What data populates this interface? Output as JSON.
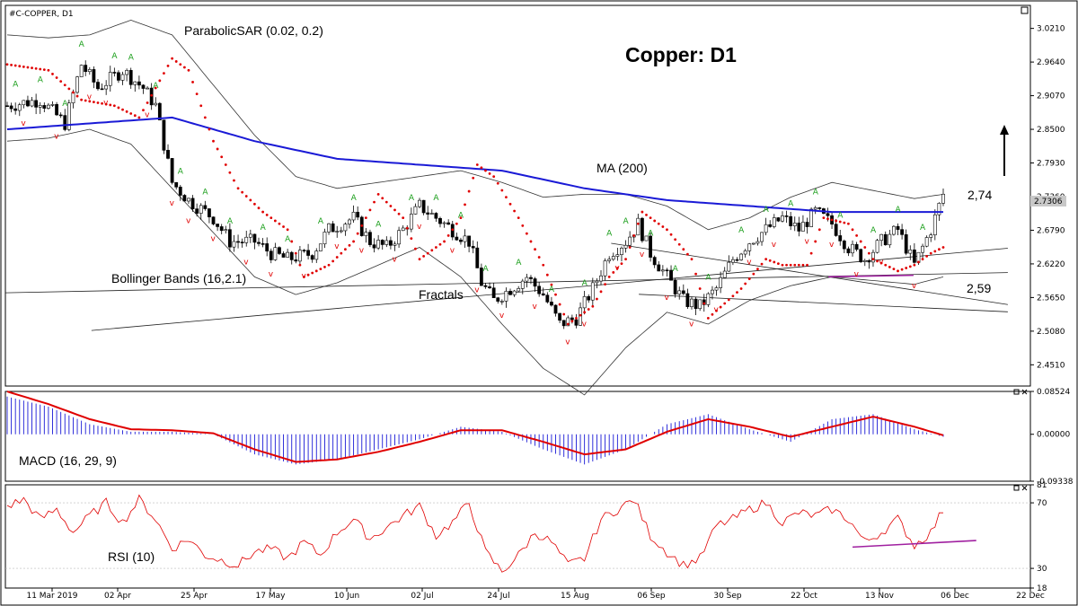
{
  "symbol_label": "#C-COPPER, D1",
  "chart_data": [
    {
      "type": "candlestick",
      "title": "Copper: D1",
      "y_ticks": [
        "3.0210",
        "2.9640",
        "2.9070",
        "2.8500",
        "2.7930",
        "2.7360",
        "2.6790",
        "2.6220",
        "2.5650",
        "2.5080",
        "2.4510"
      ],
      "ylim": [
        2.415,
        3.06
      ],
      "current_price": "2.7306",
      "x_ticks": [
        "11 Mar 2019",
        "02 Apr",
        "25 Apr",
        "17 May",
        "10 Jun",
        "02 Jul",
        "24 Jul",
        "15 Aug",
        "06 Sep",
        "30 Sep",
        "22 Oct",
        "13 Nov",
        "06 Dec",
        "22 Dec"
      ],
      "annotations": {
        "sar": "ParabolicSAR (0.02, 0.2)",
        "ma": "MA (200)",
        "bb": "Bollinger Bands (16,2.1)",
        "fractals": "Fractals",
        "level_high": "2,74",
        "level_low": "2,59"
      },
      "series_anchors": {
        "close": [
          [
            0,
            2.89
          ],
          [
            8,
            2.9
          ],
          [
            14,
            2.86
          ],
          [
            18,
            2.96
          ],
          [
            22,
            2.92
          ],
          [
            28,
            2.95
          ],
          [
            33,
            2.92
          ],
          [
            36,
            2.89
          ],
          [
            40,
            2.76
          ],
          [
            44,
            2.73
          ],
          [
            50,
            2.7
          ],
          [
            54,
            2.66
          ],
          [
            60,
            2.66
          ],
          [
            64,
            2.64
          ],
          [
            68,
            2.63
          ],
          [
            74,
            2.64
          ],
          [
            78,
            2.68
          ],
          [
            84,
            2.7
          ],
          [
            88,
            2.66
          ],
          [
            92,
            2.65
          ],
          [
            96,
            2.68
          ],
          [
            100,
            2.72
          ],
          [
            104,
            2.7
          ],
          [
            108,
            2.68
          ],
          [
            112,
            2.66
          ],
          [
            115,
            2.59
          ],
          [
            118,
            2.56
          ],
          [
            122,
            2.58
          ],
          [
            126,
            2.6
          ],
          [
            130,
            2.57
          ],
          [
            134,
            2.52
          ],
          [
            138,
            2.53
          ],
          [
            142,
            2.58
          ],
          [
            146,
            2.64
          ],
          [
            150,
            2.66
          ],
          [
            153,
            2.69
          ],
          [
            156,
            2.64
          ],
          [
            160,
            2.6
          ],
          [
            164,
            2.56
          ],
          [
            168,
            2.55
          ],
          [
            172,
            2.58
          ],
          [
            176,
            2.63
          ],
          [
            180,
            2.66
          ],
          [
            184,
            2.68
          ],
          [
            188,
            2.7
          ],
          [
            192,
            2.68
          ],
          [
            196,
            2.71
          ],
          [
            200,
            2.69
          ],
          [
            204,
            2.65
          ],
          [
            208,
            2.63
          ],
          [
            212,
            2.66
          ],
          [
            216,
            2.68
          ],
          [
            220,
            2.62
          ],
          [
            224,
            2.68
          ],
          [
            227,
            2.74
          ]
        ],
        "ma200": [
          [
            0,
            2.85
          ],
          [
            20,
            2.86
          ],
          [
            40,
            2.87
          ],
          [
            60,
            2.83
          ],
          [
            80,
            2.8
          ],
          [
            100,
            2.79
          ],
          [
            120,
            2.78
          ],
          [
            140,
            2.75
          ],
          [
            160,
            2.73
          ],
          [
            180,
            2.72
          ],
          [
            200,
            2.71
          ],
          [
            214,
            2.71
          ],
          [
            227,
            2.71
          ]
        ],
        "bb_mid": [
          [
            0,
            2.92
          ],
          [
            10,
            2.92
          ],
          [
            20,
            2.93
          ],
          [
            30,
            2.93
          ],
          [
            40,
            2.88
          ],
          [
            50,
            2.8
          ],
          [
            60,
            2.72
          ],
          [
            70,
            2.67
          ],
          [
            80,
            2.67
          ],
          [
            90,
            2.69
          ],
          [
            100,
            2.71
          ],
          [
            110,
            2.69
          ],
          [
            120,
            2.64
          ],
          [
            130,
            2.59
          ],
          [
            140,
            2.57
          ],
          [
            150,
            2.61
          ],
          [
            160,
            2.63
          ],
          [
            170,
            2.6
          ],
          [
            180,
            2.63
          ],
          [
            190,
            2.66
          ],
          [
            200,
            2.68
          ],
          [
            210,
            2.67
          ],
          [
            220,
            2.66
          ],
          [
            227,
            2.67
          ]
        ],
        "bb_width": [
          [
            0,
            0.09
          ],
          [
            20,
            0.08
          ],
          [
            40,
            0.13
          ],
          [
            60,
            0.12
          ],
          [
            80,
            0.08
          ],
          [
            100,
            0.06
          ],
          [
            120,
            0.12
          ],
          [
            140,
            0.17
          ],
          [
            160,
            0.09
          ],
          [
            180,
            0.07
          ],
          [
            200,
            0.08
          ],
          [
            227,
            0.07
          ]
        ],
        "sar": [
          [
            0,
            2.96
          ],
          [
            10,
            2.95
          ],
          [
            18,
            2.9
          ],
          [
            26,
            2.89
          ],
          [
            32,
            2.87
          ],
          [
            40,
            2.97
          ],
          [
            44,
            2.95
          ],
          [
            50,
            2.83
          ],
          [
            56,
            2.75
          ],
          [
            62,
            2.71
          ],
          [
            68,
            2.68
          ],
          [
            72,
            2.6
          ],
          [
            78,
            2.62
          ],
          [
            84,
            2.66
          ],
          [
            90,
            2.74
          ],
          [
            96,
            2.7
          ],
          [
            100,
            2.63
          ],
          [
            106,
            2.66
          ],
          [
            110,
            2.7
          ],
          [
            114,
            2.79
          ],
          [
            118,
            2.77
          ],
          [
            124,
            2.7
          ],
          [
            130,
            2.62
          ],
          [
            136,
            2.52
          ],
          [
            142,
            2.55
          ],
          [
            146,
            2.6
          ],
          [
            150,
            2.63
          ],
          [
            154,
            2.71
          ],
          [
            160,
            2.68
          ],
          [
            166,
            2.63
          ],
          [
            170,
            2.53
          ],
          [
            178,
            2.58
          ],
          [
            184,
            2.63
          ],
          [
            188,
            2.62
          ],
          [
            194,
            2.62
          ],
          [
            198,
            2.7
          ],
          [
            204,
            2.69
          ],
          [
            210,
            2.63
          ],
          [
            216,
            2.61
          ],
          [
            220,
            2.62
          ],
          [
            224,
            2.64
          ],
          [
            227,
            2.65
          ]
        ],
        "up_fractals": [
          2,
          8,
          14,
          18,
          26,
          30,
          36,
          42,
          48,
          54,
          62,
          68,
          76,
          84,
          90,
          98,
          104,
          110,
          116,
          124,
          132,
          140,
          146,
          150,
          156,
          162,
          170,
          178,
          184,
          190,
          196,
          202,
          210,
          216,
          222
        ],
        "down_fractals": [
          4,
          12,
          20,
          24,
          34,
          40,
          44,
          50,
          58,
          64,
          72,
          80,
          86,
          94,
          100,
          108,
          114,
          120,
          128,
          136,
          140,
          148,
          154,
          160,
          166,
          172,
          180,
          186,
          194,
          200,
          206,
          212,
          220
        ]
      },
      "trendlines": [
        {
          "name": "resistance-1",
          "points": [
            [
              0.084,
              0.146
            ],
            [
              0.978,
              0.362
            ]
          ]
        },
        {
          "name": "support-1",
          "points": [
            [
              0.0,
              0.245
            ],
            [
              0.978,
              0.298
            ]
          ]
        },
        {
          "name": "channel-low",
          "points": [
            [
              0.591,
              0.375
            ],
            [
              0.978,
              0.214
            ]
          ]
        },
        {
          "name": "channel-high",
          "points": [
            [
              0.618,
              0.241
            ],
            [
              0.978,
              0.195
            ]
          ]
        },
        {
          "name": "support-2",
          "points": [
            [
              0.803,
              0.287
            ],
            [
              0.886,
              0.291
            ]
          ]
        }
      ]
    },
    {
      "type": "histogram+line",
      "title": "MACD (16, 29, 9)",
      "y_ticks": [
        "0.08524",
        "0.00000",
        "-0.09338"
      ],
      "ylim": [
        -0.09338,
        0.08524
      ],
      "macd": [
        [
          0,
          0.075
        ],
        [
          10,
          0.055
        ],
        [
          20,
          0.02
        ],
        [
          30,
          0.005
        ],
        [
          40,
          0.005
        ],
        [
          50,
          0.0
        ],
        [
          60,
          -0.04
        ],
        [
          70,
          -0.06
        ],
        [
          80,
          -0.05
        ],
        [
          90,
          -0.03
        ],
        [
          100,
          -0.01
        ],
        [
          110,
          0.015
        ],
        [
          120,
          0.005
        ],
        [
          130,
          -0.03
        ],
        [
          140,
          -0.06
        ],
        [
          150,
          -0.03
        ],
        [
          160,
          0.02
        ],
        [
          170,
          0.04
        ],
        [
          180,
          0.01
        ],
        [
          190,
          -0.015
        ],
        [
          200,
          0.03
        ],
        [
          210,
          0.04
        ],
        [
          220,
          0.01
        ],
        [
          227,
          -0.005
        ]
      ],
      "signal": [
        [
          0,
          0.085
        ],
        [
          10,
          0.06
        ],
        [
          20,
          0.03
        ],
        [
          30,
          0.01
        ],
        [
          40,
          0.008
        ],
        [
          50,
          0.002
        ],
        [
          60,
          -0.03
        ],
        [
          70,
          -0.055
        ],
        [
          80,
          -0.05
        ],
        [
          90,
          -0.035
        ],
        [
          100,
          -0.015
        ],
        [
          110,
          0.008
        ],
        [
          120,
          0.008
        ],
        [
          130,
          -0.015
        ],
        [
          140,
          -0.04
        ],
        [
          150,
          -0.03
        ],
        [
          160,
          0.005
        ],
        [
          170,
          0.03
        ],
        [
          180,
          0.015
        ],
        [
          190,
          -0.005
        ],
        [
          200,
          0.015
        ],
        [
          210,
          0.035
        ],
        [
          220,
          0.015
        ],
        [
          227,
          -0.002
        ]
      ]
    },
    {
      "type": "line",
      "title": "RSI (10)",
      "y_ticks": [
        "81",
        "70",
        "30",
        "18"
      ],
      "ylim": [
        18,
        81
      ],
      "rsi": [
        [
          0,
          68
        ],
        [
          4,
          72
        ],
        [
          8,
          60
        ],
        [
          12,
          66
        ],
        [
          16,
          52
        ],
        [
          20,
          62
        ],
        [
          24,
          70
        ],
        [
          28,
          58
        ],
        [
          32,
          72
        ],
        [
          36,
          60
        ],
        [
          40,
          42
        ],
        [
          44,
          48
        ],
        [
          48,
          38
        ],
        [
          52,
          35
        ],
        [
          56,
          32
        ],
        [
          60,
          40
        ],
        [
          64,
          42
        ],
        [
          68,
          36
        ],
        [
          72,
          46
        ],
        [
          76,
          38
        ],
        [
          80,
          52
        ],
        [
          84,
          60
        ],
        [
          88,
          48
        ],
        [
          92,
          55
        ],
        [
          96,
          62
        ],
        [
          100,
          68
        ],
        [
          104,
          50
        ],
        [
          108,
          58
        ],
        [
          112,
          70
        ],
        [
          116,
          40
        ],
        [
          120,
          28
        ],
        [
          124,
          38
        ],
        [
          128,
          52
        ],
        [
          132,
          46
        ],
        [
          136,
          32
        ],
        [
          140,
          36
        ],
        [
          144,
          60
        ],
        [
          148,
          66
        ],
        [
          152,
          72
        ],
        [
          156,
          50
        ],
        [
          160,
          40
        ],
        [
          164,
          32
        ],
        [
          168,
          36
        ],
        [
          172,
          56
        ],
        [
          176,
          60
        ],
        [
          180,
          66
        ],
        [
          184,
          70
        ],
        [
          188,
          58
        ],
        [
          192,
          64
        ],
        [
          196,
          62
        ],
        [
          200,
          66
        ],
        [
          204,
          60
        ],
        [
          208,
          46
        ],
        [
          212,
          52
        ],
        [
          216,
          60
        ],
        [
          220,
          44
        ],
        [
          224,
          52
        ],
        [
          227,
          66
        ]
      ],
      "trend": [
        [
          205,
          43
        ],
        [
          235,
          47
        ]
      ]
    }
  ]
}
